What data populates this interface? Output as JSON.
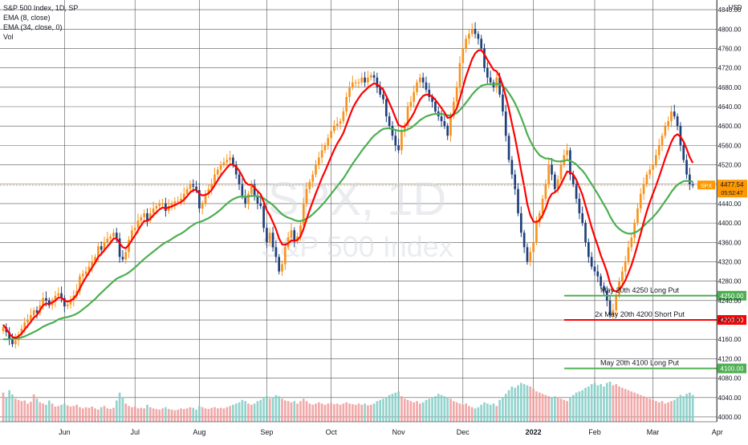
{
  "legend": {
    "title": "S&P 500 Index, 1D, SP",
    "ema_fast": "EMA (8, close)",
    "ema_slow": "EMA (34, close, 0)",
    "vol": "Vol"
  },
  "watermark": {
    "symbol": "SPX, 1D",
    "name": "S&P 500 Index"
  },
  "currency": "USD",
  "price_tag": {
    "symbol": "SPX",
    "price": "4477.54",
    "countdown": "05:52:47"
  },
  "colors": {
    "up": "#f7931e",
    "down": "#1f3f7a",
    "ema_fast": "#ff0000",
    "ema_slow": "#4caf50",
    "vol_up": "#ef9a9a",
    "vol_down": "#80cbc4",
    "grid": "#555555",
    "price_tag": "#ff9800"
  },
  "chart_data": {
    "type": "candlestick",
    "title": "S&P 500 Index, 1D, SP",
    "ylabel": "USD",
    "ylim": [
      3990,
      4860
    ],
    "y_ticks": [
      4000,
      4040,
      4080,
      4120,
      4160,
      4200,
      4240,
      4280,
      4320,
      4360,
      4400,
      4440,
      4480,
      4520,
      4560,
      4600,
      4640,
      4680,
      4720,
      4760,
      4800,
      4840
    ],
    "x_ticks": [
      "Jun",
      "Jul",
      "Aug",
      "Sep",
      "Oct",
      "Nov",
      "Dec",
      "2022",
      "Feb",
      "Mar",
      "Apr"
    ],
    "x_tick_days": [
      20,
      43,
      64,
      86,
      107,
      129,
      150,
      173,
      193,
      212,
      233
    ],
    "close": [
      4185,
      4175,
      4160,
      4150,
      4158,
      4170,
      4182,
      4195,
      4200,
      4210,
      4220,
      4215,
      4230,
      4245,
      4240,
      4230,
      4238,
      4250,
      4255,
      4245,
      4228,
      4232,
      4240,
      4250,
      4260,
      4290,
      4295,
      4300,
      4310,
      4320,
      4330,
      4352,
      4345,
      4360,
      4368,
      4372,
      4380,
      4368,
      4330,
      4325,
      4340,
      4365,
      4385,
      4390,
      4405,
      4412,
      4420,
      4405,
      4420,
      4430,
      4435,
      4440,
      4440,
      4425,
      4435,
      4440,
      4445,
      4445,
      4450,
      4460,
      4470,
      4480,
      4475,
      4468,
      4430,
      4440,
      4460,
      4470,
      4480,
      4500,
      4510,
      4520,
      4525,
      4530,
      4535,
      4520,
      4500,
      4480,
      4455,
      4440,
      4460,
      4480,
      4455,
      4440,
      4435,
      4390,
      4360,
      4380,
      4350,
      4330,
      4300,
      4315,
      4350,
      4370,
      4385,
      4362,
      4372,
      4395,
      4440,
      4470,
      4485,
      4500,
      4520,
      4535,
      4550,
      4560,
      4575,
      4590,
      4600,
      4605,
      4610,
      4630,
      4660,
      4680,
      4690,
      4690,
      4690,
      4700,
      4690,
      4700,
      4705,
      4700,
      4680,
      4665,
      4655,
      4620,
      4600,
      4580,
      4560,
      4550,
      4590,
      4600,
      4640,
      4650,
      4670,
      4690,
      4700,
      4690,
      4675,
      4660,
      4650,
      4630,
      4620,
      4610,
      4600,
      4580,
      4620,
      4650,
      4680,
      4730,
      4760,
      4780,
      4790,
      4800,
      4790,
      4780,
      4760,
      4720,
      4700,
      4690,
      4680,
      4700,
      4665,
      4630,
      4580,
      4530,
      4500,
      4470,
      4420,
      4380,
      4350,
      4320,
      4340,
      4360,
      4400,
      4420,
      4450,
      4480,
      4520,
      4500,
      4470,
      4490,
      4520,
      4540,
      4550,
      4500,
      4480,
      4450,
      4420,
      4400,
      4360,
      4330,
      4310,
      4300,
      4290,
      4270,
      4260,
      4240,
      4210,
      4220,
      4250,
      4280,
      4300,
      4320,
      4350,
      4370,
      4400,
      4430,
      4460,
      4480,
      4500,
      4510,
      4520,
      4540,
      4560,
      4580,
      4600,
      4610,
      4630,
      4620,
      4600,
      4560,
      4530,
      4500,
      4480,
      4478
    ],
    "ema_fast": [
      4190,
      4182,
      4172,
      4165,
      4163,
      4166,
      4172,
      4180,
      4188,
      4196,
      4205,
      4210,
      4220,
      4230,
      4234,
      4233,
      4236,
      4240,
      4246,
      4246,
      4240,
      4238,
      4240,
      4244,
      4252,
      4265,
      4277,
      4288,
      4298,
      4308,
      4318,
      4330,
      4336,
      4344,
      4351,
      4359,
      4368,
      4368,
      4358,
      4350,
      4348,
      4355,
      4365,
      4374,
      4385,
      4395,
      4404,
      4404,
      4409,
      4416,
      4422,
      4428,
      4432,
      4430,
      4432,
      4434,
      4437,
      4440,
      4443,
      4448,
      4455,
      4463,
      4468,
      4468,
      4460,
      4457,
      4458,
      4461,
      4468,
      4478,
      4488,
      4498,
      4506,
      4514,
      4521,
      4520,
      4516,
      4508,
      4497,
      4484,
      4479,
      4479,
      4473,
      4466,
      4459,
      4444,
      4426,
      4416,
      4402,
      4387,
      4368,
      4356,
      4355,
      4358,
      4364,
      4363,
      4365,
      4372,
      4388,
      4408,
      4427,
      4444,
      4461,
      4477,
      4493,
      4507,
      4522,
      4537,
      4551,
      4564,
      4574,
      4586,
      4603,
      4620,
      4636,
      4648,
      4658,
      4667,
      4673,
      4679,
      4684,
      4688,
      4686,
      4681,
      4675,
      4662,
      4648,
      4633,
      4617,
      4602,
      4599,
      4599,
      4607,
      4616,
      4627,
      4641,
      4654,
      4662,
      4665,
      4664,
      4661,
      4654,
      4646,
      4637,
      4628,
      4617,
      4618,
      4625,
      4637,
      4657,
      4680,
      4702,
      4720,
      4738,
      4750,
      4756,
      4757,
      4748,
      4737,
      4726,
      4716,
      4713,
      4702,
      4684,
      4661,
      4635,
      4605,
      4576,
      4543,
      4508,
      4475,
      4439,
      4416,
      4403,
      4402,
      4406,
      4416,
      4430,
      4449,
      4460,
      4463,
      4469,
      4480,
      4493,
      4506,
      4505,
      4500,
      4489,
      4474,
      4458,
      4436,
      4414,
      4391,
      4371,
      4353,
      4333,
      4317,
      4299,
      4276,
      4261,
      4259,
      4263,
      4271,
      4282,
      4297,
      4313,
      4333,
      4355,
      4378,
      4402,
      4424,
      4443,
      4460,
      4477,
      4495,
      4514,
      4533,
      4550,
      4567,
      4579,
      4583,
      4578,
      4568,
      4553,
      4536,
      4524
    ],
    "ema_slow": [
      4160,
      4160,
      4160,
      4161,
      4162,
      4163,
      4164,
      4166,
      4169,
      4172,
      4175,
      4178,
      4182,
      4186,
      4189,
      4192,
      4194,
      4197,
      4201,
      4203,
      4205,
      4206,
      4208,
      4210,
      4213,
      4217,
      4222,
      4227,
      4232,
      4238,
      4243,
      4250,
      4256,
      4262,
      4268,
      4274,
      4280,
      4285,
      4288,
      4291,
      4294,
      4298,
      4303,
      4308,
      4314,
      4320,
      4326,
      4331,
      4336,
      4341,
      4346,
      4351,
      4356,
      4360,
      4363,
      4367,
      4371,
      4375,
      4378,
      4382,
      4387,
      4392,
      4396,
      4400,
      4402,
      4404,
      4407,
      4410,
      4414,
      4418,
      4423,
      4428,
      4434,
      4440,
      4445,
      4449,
      4452,
      4454,
      4455,
      4454,
      4455,
      4456,
      4456,
      4455,
      4454,
      4451,
      4446,
      4442,
      4437,
      4431,
      4424,
      4418,
      4414,
      4411,
      4409,
      4406,
      4404,
      4404,
      4406,
      4409,
      4413,
      4418,
      4424,
      4430,
      4437,
      4444,
      4452,
      4460,
      4468,
      4476,
      4484,
      4492,
      4502,
      4512,
      4522,
      4531,
      4540,
      4549,
      4557,
      4565,
      4573,
      4580,
      4585,
      4590,
      4594,
      4595,
      4595,
      4594,
      4592,
      4590,
      4590,
      4590,
      4593,
      4596,
      4601,
      4606,
      4612,
      4616,
      4620,
      4622,
      4624,
      4625,
      4625,
      4625,
      4624,
      4622,
      4622,
      4624,
      4627,
      4633,
      4640,
      4648,
      4656,
      4665,
      4672,
      4678,
      4683,
      4685,
      4686,
      4686,
      4686,
      4687,
      4686,
      4683,
      4677,
      4668,
      4658,
      4647,
      4633,
      4618,
      4601,
      4583,
      4569,
      4557,
      4548,
      4540,
      4536,
      4533,
      4533,
      4531,
      4528,
      4527,
      4527,
      4528,
      4530,
      4528,
      4525,
      4521,
      4514,
      4508,
      4500,
      4490,
      4480,
      4470,
      4460,
      4449,
      4438,
      4427,
      4414,
      4403,
      4394,
      4388,
      4383,
      4380,
      4378,
      4378,
      4380,
      4383,
      4388,
      4394,
      4400,
      4406,
      4412,
      4419,
      4427,
      4436,
      4445,
      4454,
      4464,
      4472,
      4479,
      4483,
      4486,
      4487,
      4486,
      4486
    ],
    "volume": [
      48,
      40,
      52,
      45,
      38,
      36,
      34,
      35,
      30,
      33,
      45,
      38,
      32,
      30,
      28,
      35,
      30,
      25,
      26,
      28,
      30,
      27,
      25,
      26,
      28,
      24,
      22,
      24,
      23,
      25,
      22,
      20,
      24,
      26,
      22,
      21,
      23,
      35,
      48,
      40,
      30,
      26,
      24,
      25,
      22,
      23,
      22,
      28,
      24,
      22,
      21,
      20,
      22,
      24,
      21,
      20,
      19,
      20,
      22,
      21,
      22,
      24,
      23,
      20,
      26,
      24,
      22,
      21,
      23,
      24,
      22,
      23,
      22,
      24,
      26,
      28,
      30,
      32,
      36,
      34,
      30,
      28,
      30,
      34,
      36,
      40,
      42,
      38,
      40,
      44,
      42,
      38,
      35,
      34,
      32,
      34,
      30,
      34,
      38,
      34,
      30,
      28,
      30,
      32,
      30,
      28,
      30,
      31,
      29,
      30,
      28,
      30,
      32,
      30,
      29,
      28,
      30,
      28,
      30,
      27,
      28,
      30,
      34,
      36,
      38,
      40,
      44,
      46,
      48,
      50,
      42,
      38,
      36,
      34,
      32,
      34,
      30,
      32,
      36,
      38,
      40,
      42,
      46,
      44,
      42,
      40,
      38,
      34,
      32,
      30,
      28,
      30,
      26,
      24,
      22,
      24,
      28,
      32,
      30,
      28,
      30,
      26,
      36,
      40,
      46,
      52,
      58,
      56,
      60,
      64,
      62,
      60,
      58,
      54,
      50,
      48,
      46,
      44,
      42,
      40,
      42,
      40,
      38,
      36,
      34,
      40,
      44,
      48,
      50,
      52,
      56,
      58,
      62,
      64,
      60,
      62,
      58,
      64,
      66,
      60,
      62,
      58,
      56,
      54,
      52,
      50,
      48,
      46,
      44,
      42,
      40,
      38,
      36,
      34,
      32,
      34,
      30,
      32,
      34,
      36,
      40,
      44,
      42,
      46,
      48,
      44
    ],
    "volume_max": 140,
    "levels": [
      {
        "price": 4250,
        "label": "May 20th 4250 Long Put",
        "tag": "4250.00",
        "color": "#4caf50"
      },
      {
        "price": 4200,
        "label": "2x May 20th 4200 Short Put",
        "tag": "4200.00",
        "color": "#ff0000"
      },
      {
        "price": 4100,
        "label": "May 20th 4100 Long Put",
        "tag": "4100.00",
        "color": "#4caf50"
      }
    ],
    "last_price": 4477.54
  }
}
